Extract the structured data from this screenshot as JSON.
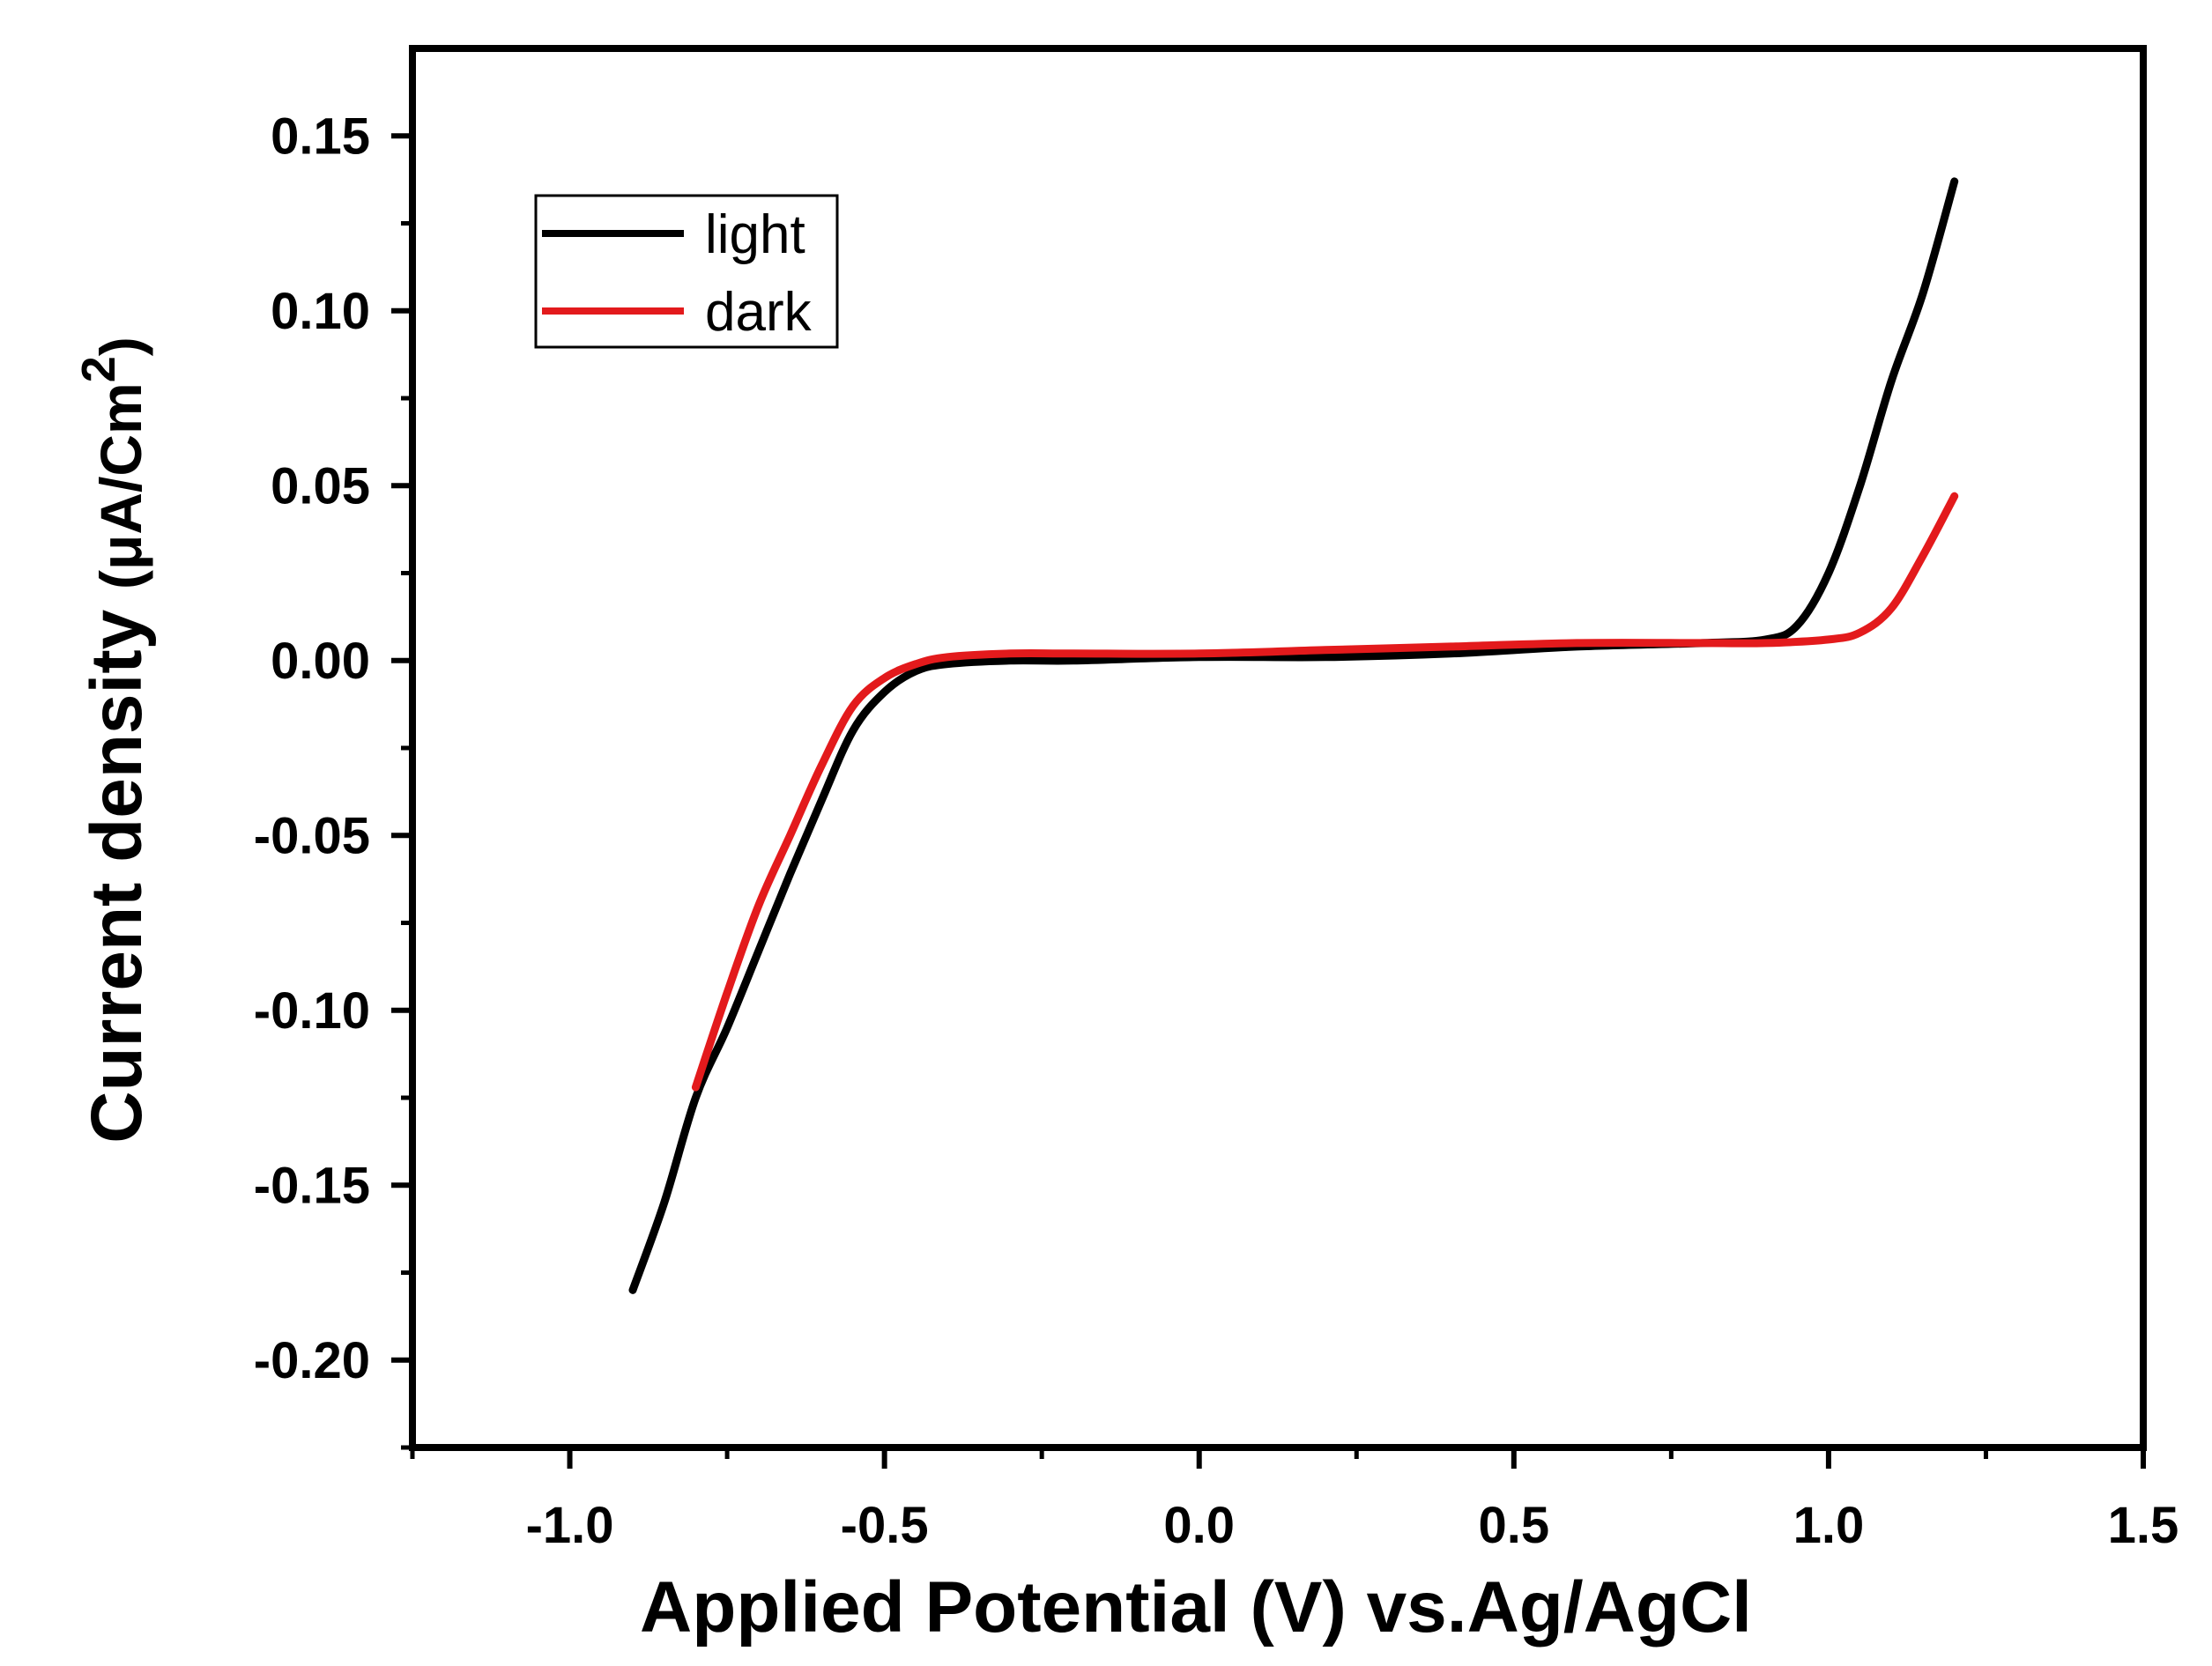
{
  "chart_data": {
    "type": "line",
    "title": "",
    "xlabel": "Applied Potential (V) vs.Ag/AgCl",
    "ylabel": {
      "main": "Current density ",
      "units_open": "(μA/Cm",
      "units_sup": "2",
      "units_close": ")"
    },
    "xlim": [
      -1.25,
      1.5
    ],
    "ylim": [
      -0.225,
      0.175
    ],
    "x_ticks": [
      -1.0,
      -0.5,
      0.0,
      0.5,
      1.0,
      1.5
    ],
    "x_tick_labels": [
      "-1.0",
      "-0.5",
      "0.0",
      "0.5",
      "1.0",
      "1.5"
    ],
    "y_ticks": [
      0.15,
      0.1,
      0.05,
      0.0,
      -0.05,
      -0.1,
      -0.15,
      -0.2
    ],
    "y_tick_labels": [
      "0.15",
      "0.10",
      "0.05",
      "0.00",
      "-0.05",
      "-0.10",
      "-0.15",
      "-0.20"
    ],
    "grid": false,
    "legend_position": "top-left",
    "series": [
      {
        "name": "light",
        "color": "#000000",
        "x": [
          -0.9,
          -0.85,
          -0.8,
          -0.75,
          -0.7,
          -0.65,
          -0.6,
          -0.55,
          -0.5,
          -0.45,
          -0.4,
          -0.3,
          -0.2,
          0.0,
          0.2,
          0.4,
          0.6,
          0.8,
          0.9,
          0.95,
          1.0,
          1.05,
          1.1,
          1.15,
          1.2
        ],
        "y": [
          -0.18,
          -0.155,
          -0.125,
          -0.105,
          -0.083,
          -0.061,
          -0.04,
          -0.02,
          -0.009,
          -0.003,
          -0.001,
          0.0,
          0.0,
          0.001,
          0.001,
          0.002,
          0.004,
          0.005,
          0.006,
          0.01,
          0.025,
          0.05,
          0.08,
          0.105,
          0.137
        ]
      },
      {
        "name": "dark",
        "color": "#e31a1c",
        "x": [
          -0.8,
          -0.75,
          -0.7,
          -0.65,
          -0.6,
          -0.55,
          -0.5,
          -0.45,
          -0.4,
          -0.3,
          -0.2,
          0.0,
          0.2,
          0.4,
          0.6,
          0.8,
          0.9,
          1.0,
          1.05,
          1.1,
          1.15,
          1.2
        ],
        "y": [
          -0.122,
          -0.095,
          -0.07,
          -0.05,
          -0.03,
          -0.013,
          -0.005,
          -0.001,
          0.001,
          0.002,
          0.002,
          0.002,
          0.003,
          0.004,
          0.005,
          0.005,
          0.005,
          0.006,
          0.008,
          0.015,
          0.03,
          0.047
        ]
      }
    ]
  }
}
